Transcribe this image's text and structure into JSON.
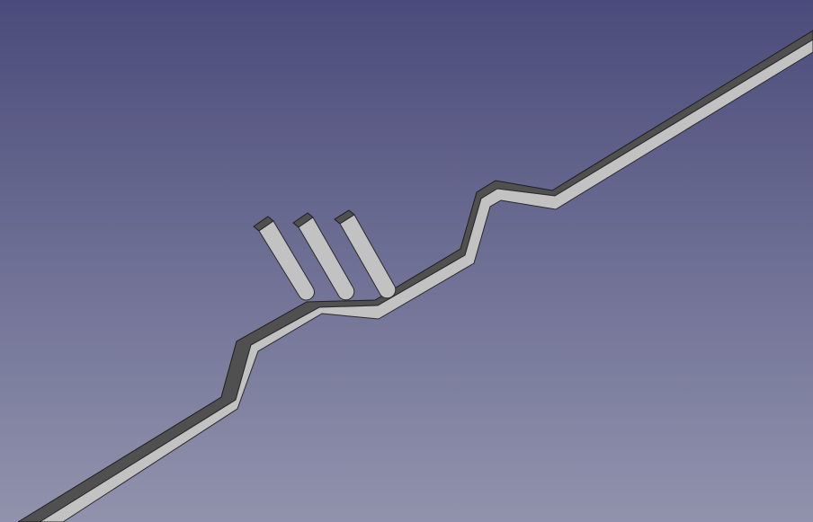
{
  "viewport": {
    "background_top": "#4b4b7b",
    "background_bottom": "#9193ad",
    "model": {
      "name": "bent-strip-with-three-pins",
      "face_color": "#c2c2c2",
      "side_color": "#505050",
      "edge_color": "#1e1e1e",
      "pin_count": 3
    }
  }
}
